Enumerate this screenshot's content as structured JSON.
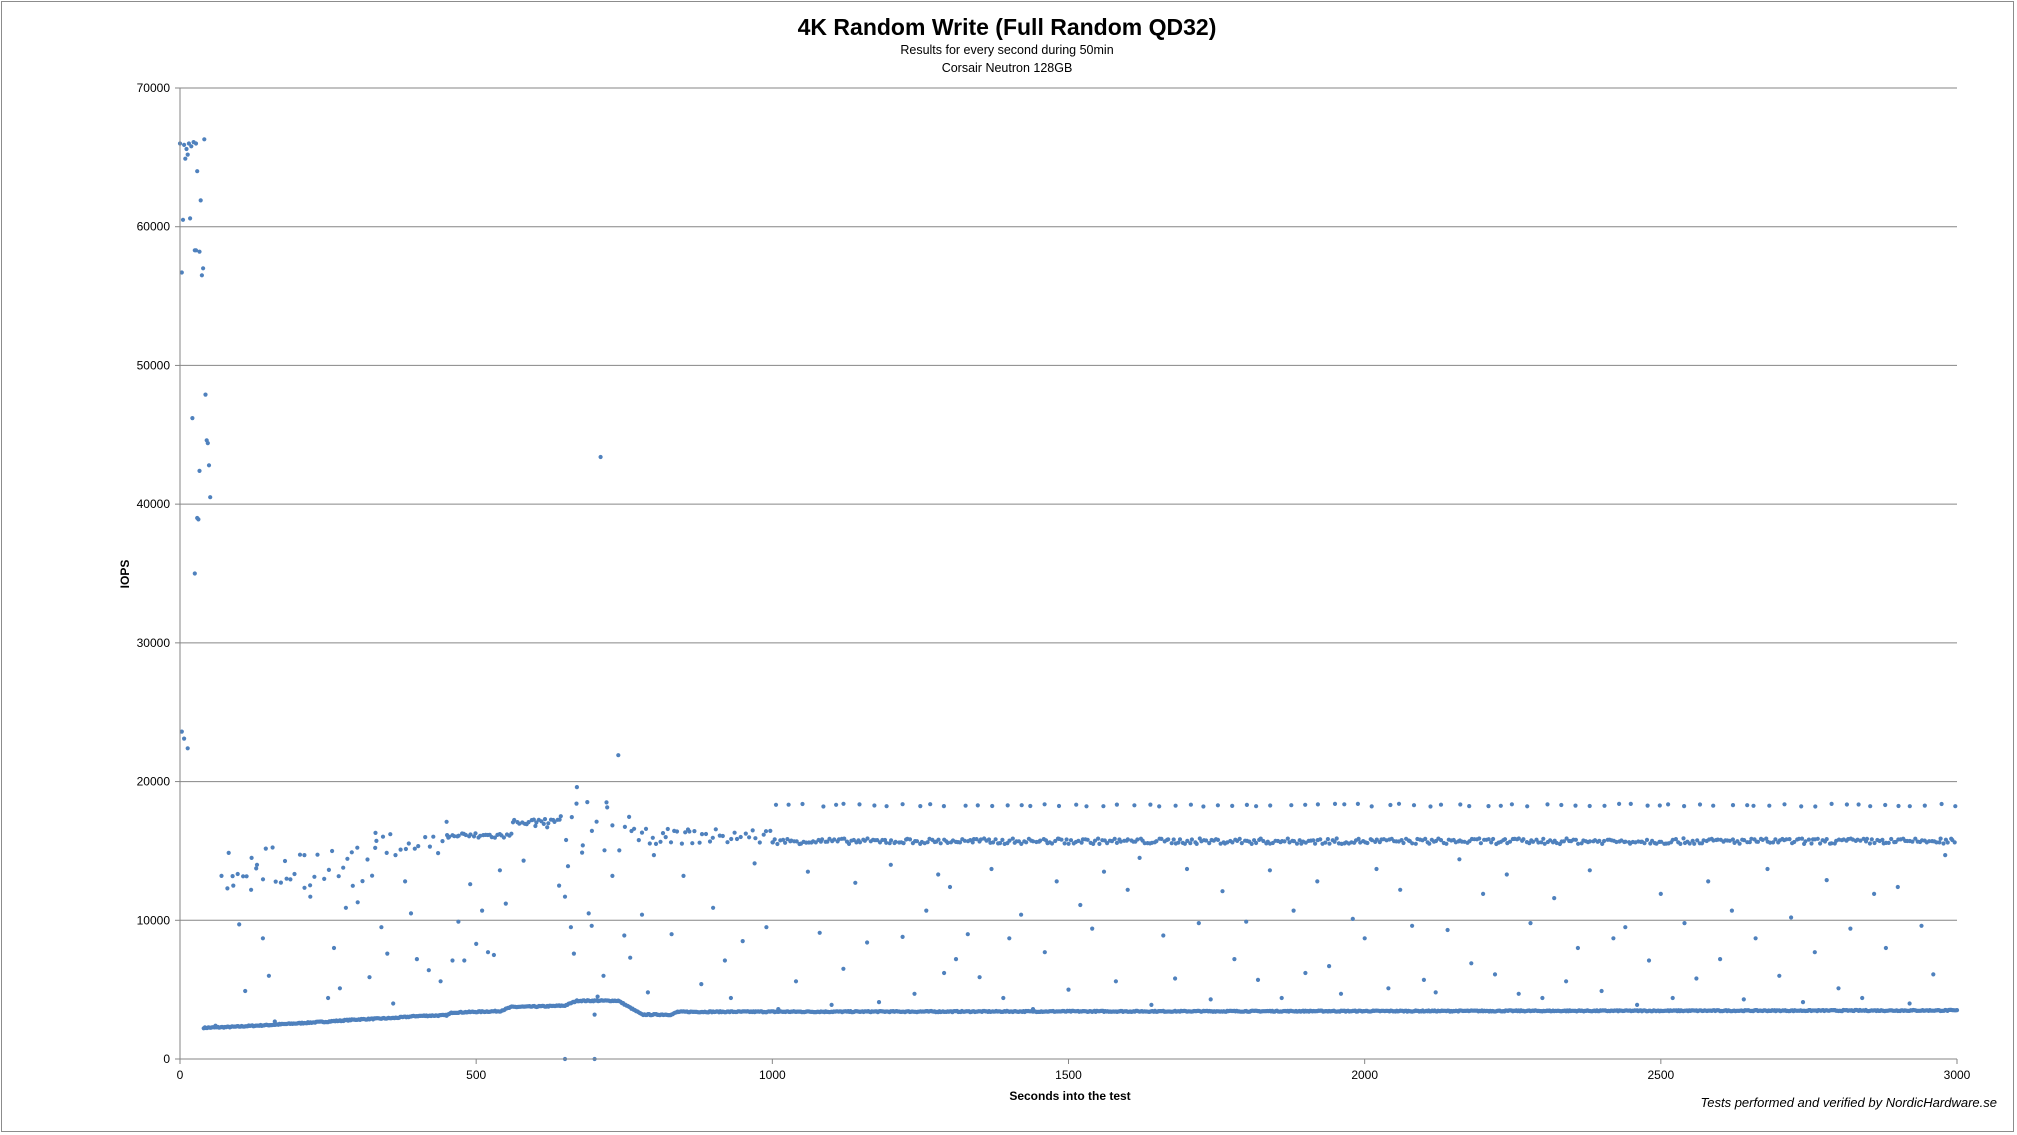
{
  "chart_data": {
    "type": "scatter",
    "title": "4K Random Write (Full Random QD32)",
    "subtitle_lines": [
      "Results for every second during 50min",
      "Corsair Neutron 128GB"
    ],
    "xlabel": "Seconds into the test",
    "ylabel": "IOPS",
    "xlim": [
      0,
      3000
    ],
    "ylim": [
      0,
      70000
    ],
    "x_ticks": [
      0,
      500,
      1000,
      1500,
      2000,
      2500,
      3000
    ],
    "y_ticks": [
      0,
      10000,
      20000,
      30000,
      40000,
      50000,
      60000,
      70000
    ],
    "grid": "horizontal",
    "legend": "none",
    "marker_color": "#4f81bd",
    "credit": "Tests performed and verified by NordicHardware.se",
    "series": [
      {
        "baseline": [
          [
            40,
            2250
          ],
          [
            80,
            2300
          ],
          [
            150,
            2450
          ],
          [
            250,
            2700
          ],
          [
            300,
            2850
          ],
          [
            360,
            2950
          ],
          [
            400,
            3100
          ],
          [
            450,
            3150
          ],
          [
            460,
            3350
          ],
          [
            540,
            3450
          ],
          [
            560,
            3750
          ],
          [
            620,
            3800
          ],
          [
            650,
            3850
          ],
          [
            670,
            4200
          ],
          [
            740,
            4200
          ],
          [
            780,
            3200
          ],
          [
            830,
            3200
          ],
          [
            840,
            3400
          ],
          [
            3000,
            3500
          ]
        ],
        "early_burst": [
          [
            0,
            66000
          ],
          [
            3,
            56700
          ],
          [
            5,
            60500
          ],
          [
            7,
            65900
          ],
          [
            9,
            64900
          ],
          [
            11,
            65600
          ],
          [
            13,
            65200
          ],
          [
            15,
            66000
          ],
          [
            17,
            60600
          ],
          [
            19,
            65800
          ],
          [
            21,
            46200
          ],
          [
            23,
            66100
          ],
          [
            25,
            58300
          ],
          [
            27,
            66000
          ],
          [
            29,
            64000
          ],
          [
            31,
            38900
          ],
          [
            33,
            58200
          ],
          [
            35,
            61900
          ],
          [
            37,
            56500
          ],
          [
            39,
            57000
          ],
          [
            41,
            66300
          ],
          [
            43,
            47900
          ],
          [
            45,
            44600
          ],
          [
            47,
            44400
          ],
          [
            49,
            42800
          ],
          [
            51,
            40500
          ],
          [
            3,
            23600
          ],
          [
            7,
            23100
          ],
          [
            13,
            22400
          ],
          [
            25,
            35000
          ],
          [
            29,
            39000
          ],
          [
            33,
            42400
          ],
          [
            27,
            58300
          ]
        ],
        "bands": [
          {
            "x_from": 80,
            "x_to": 330,
            "y_from": 12300,
            "y_to": 15300,
            "step": 8
          },
          {
            "x_from": 330,
            "x_to": 450,
            "y_from": 14700,
            "y_to": 16300,
            "step": 8
          },
          {
            "x_from": 450,
            "x_to": 560,
            "y_from": 15900,
            "y_to": 16300,
            "step": 4
          },
          {
            "x_from": 560,
            "x_to": 640,
            "y_from": 16900,
            "y_to": 17300,
            "step": 4
          },
          {
            "x_from": 640,
            "x_to": 760,
            "y_from": 14600,
            "y_to": 18700,
            "step": 9
          },
          {
            "x_from": 760,
            "x_to": 1000,
            "y_from": 15500,
            "y_to": 16600,
            "step": 6
          },
          {
            "x_from": 1000,
            "x_to": 3000,
            "y_from": 15500,
            "y_to": 15900,
            "step": 4
          },
          {
            "x_from": 1000,
            "x_to": 3000,
            "y_from": 18200,
            "y_to": 18400,
            "step": 24
          }
        ],
        "scatter_extra": [
          [
            60,
            2400
          ],
          [
            70,
            13200
          ],
          [
            80,
            12300
          ],
          [
            90,
            12500
          ],
          [
            100,
            9700
          ],
          [
            110,
            4900
          ],
          [
            120,
            12200
          ],
          [
            130,
            14000
          ],
          [
            140,
            8700
          ],
          [
            150,
            6000
          ],
          [
            160,
            2700
          ],
          [
            180,
            13000
          ],
          [
            210,
            14700
          ],
          [
            220,
            11700
          ],
          [
            250,
            4400
          ],
          [
            260,
            8000
          ],
          [
            270,
            5100
          ],
          [
            280,
            10900
          ],
          [
            290,
            14900
          ],
          [
            300,
            11300
          ],
          [
            320,
            5900
          ],
          [
            330,
            16300
          ],
          [
            340,
            9500
          ],
          [
            350,
            7600
          ],
          [
            360,
            4000
          ],
          [
            380,
            12800
          ],
          [
            390,
            10500
          ],
          [
            400,
            7200
          ],
          [
            420,
            6400
          ],
          [
            440,
            5600
          ],
          [
            450,
            17100
          ],
          [
            460,
            7100
          ],
          [
            470,
            9900
          ],
          [
            480,
            7100
          ],
          [
            490,
            12600
          ],
          [
            500,
            8300
          ],
          [
            510,
            10700
          ],
          [
            520,
            7700
          ],
          [
            530,
            7500
          ],
          [
            540,
            13600
          ],
          [
            550,
            11200
          ],
          [
            580,
            14300
          ],
          [
            600,
            16800
          ],
          [
            620,
            16700
          ],
          [
            640,
            12500
          ],
          [
            650,
            11700
          ],
          [
            655,
            13900
          ],
          [
            660,
            9500
          ],
          [
            665,
            7600
          ],
          [
            670,
            19600
          ],
          [
            680,
            15400
          ],
          [
            690,
            10500
          ],
          [
            695,
            9600
          ],
          [
            700,
            3200
          ],
          [
            705,
            4500
          ],
          [
            710,
            43400
          ],
          [
            715,
            6000
          ],
          [
            720,
            18500
          ],
          [
            730,
            13200
          ],
          [
            740,
            21900
          ],
          [
            750,
            8900
          ],
          [
            760,
            7300
          ],
          [
            780,
            10400
          ],
          [
            790,
            4800
          ],
          [
            800,
            14700
          ],
          [
            820,
            16000
          ],
          [
            830,
            9000
          ],
          [
            850,
            13200
          ],
          [
            860,
            16400
          ],
          [
            880,
            5400
          ],
          [
            900,
            10900
          ],
          [
            920,
            7100
          ],
          [
            930,
            4400
          ],
          [
            950,
            8500
          ],
          [
            970,
            14100
          ],
          [
            990,
            9500
          ],
          [
            1010,
            3600
          ],
          [
            1040,
            5600
          ],
          [
            1060,
            13500
          ],
          [
            1080,
            9100
          ],
          [
            1100,
            3900
          ],
          [
            1120,
            6500
          ],
          [
            1140,
            12700
          ],
          [
            1160,
            8400
          ],
          [
            1180,
            4100
          ],
          [
            1200,
            14000
          ],
          [
            1220,
            8800
          ],
          [
            1240,
            4700
          ],
          [
            1260,
            10700
          ],
          [
            1280,
            13300
          ],
          [
            1290,
            6200
          ],
          [
            1300,
            12400
          ],
          [
            1310,
            7200
          ],
          [
            1330,
            9000
          ],
          [
            1350,
            5900
          ],
          [
            1370,
            13700
          ],
          [
            1390,
            4400
          ],
          [
            1400,
            8700
          ],
          [
            1420,
            10400
          ],
          [
            1440,
            3600
          ],
          [
            1460,
            7700
          ],
          [
            1480,
            12800
          ],
          [
            1500,
            5000
          ],
          [
            1520,
            11100
          ],
          [
            1540,
            9400
          ],
          [
            1560,
            13500
          ],
          [
            1580,
            5600
          ],
          [
            1600,
            12200
          ],
          [
            1620,
            14500
          ],
          [
            1640,
            3900
          ],
          [
            1660,
            8900
          ],
          [
            1680,
            5800
          ],
          [
            1700,
            13700
          ],
          [
            1720,
            9800
          ],
          [
            1740,
            4300
          ],
          [
            1760,
            12100
          ],
          [
            1780,
            7200
          ],
          [
            1800,
            9900
          ],
          [
            1820,
            5700
          ],
          [
            1840,
            13600
          ],
          [
            1860,
            4400
          ],
          [
            1880,
            10700
          ],
          [
            1900,
            6200
          ],
          [
            1920,
            12800
          ],
          [
            1940,
            6700
          ],
          [
            1960,
            4700
          ],
          [
            1980,
            10100
          ],
          [
            2000,
            8700
          ],
          [
            2020,
            13700
          ],
          [
            2040,
            5100
          ],
          [
            2060,
            12200
          ],
          [
            2080,
            9600
          ],
          [
            2100,
            5700
          ],
          [
            2120,
            4800
          ],
          [
            2140,
            9300
          ],
          [
            2160,
            14400
          ],
          [
            2180,
            6900
          ],
          [
            2200,
            11900
          ],
          [
            2220,
            6100
          ],
          [
            2240,
            13300
          ],
          [
            2260,
            4700
          ],
          [
            2280,
            9800
          ],
          [
            2300,
            4400
          ],
          [
            2320,
            11600
          ],
          [
            2340,
            5600
          ],
          [
            2360,
            8000
          ],
          [
            2380,
            13600
          ],
          [
            2400,
            4900
          ],
          [
            2420,
            8700
          ],
          [
            2440,
            9500
          ],
          [
            2460,
            3900
          ],
          [
            2480,
            7100
          ],
          [
            2500,
            11900
          ],
          [
            2520,
            4400
          ],
          [
            2540,
            9800
          ],
          [
            2560,
            5800
          ],
          [
            2580,
            12800
          ],
          [
            2600,
            7200
          ],
          [
            2620,
            10700
          ],
          [
            2640,
            4300
          ],
          [
            2660,
            8700
          ],
          [
            2680,
            13700
          ],
          [
            2700,
            6000
          ],
          [
            2720,
            10200
          ],
          [
            2740,
            4100
          ],
          [
            2760,
            7700
          ],
          [
            2780,
            12900
          ],
          [
            2800,
            5100
          ],
          [
            2820,
            9400
          ],
          [
            2840,
            4400
          ],
          [
            2860,
            11900
          ],
          [
            2880,
            8000
          ],
          [
            2900,
            12400
          ],
          [
            2920,
            4000
          ],
          [
            2940,
            9600
          ],
          [
            2960,
            6100
          ],
          [
            2980,
            14700
          ]
        ],
        "zero_points": [
          [
            650,
            0
          ],
          [
            700,
            0
          ]
        ]
      }
    ]
  }
}
